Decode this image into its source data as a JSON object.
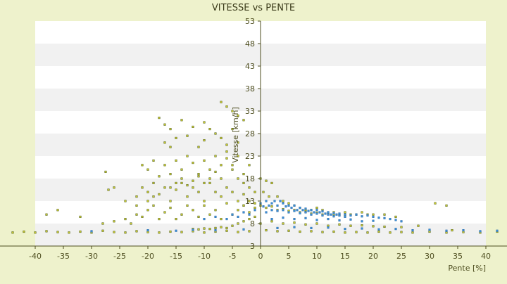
{
  "chart_data": {
    "type": "scatter",
    "title": "VITESSE vs PENTE",
    "xlabel": "Pente [%]",
    "ylabel": "Vitesse [km/h]",
    "xlim": [
      -40,
      40
    ],
    "ylim": [
      3,
      53
    ],
    "x_ticks": [
      "-40",
      "-35",
      "-30",
      "-25",
      "-20",
      "-15",
      "-10",
      "-5",
      "0",
      "5",
      "10",
      "15",
      "20",
      "25",
      "30",
      "35",
      "40"
    ],
    "y_ticks": [
      "3",
      "8",
      "13",
      "18",
      "23",
      "28",
      "33",
      "38",
      "43",
      "48",
      "53"
    ],
    "grid": "horizontal alternating bands",
    "legend": "none",
    "colors": {
      "background": "#eef2cc",
      "plot_band_light": "#ffffff",
      "plot_band_dark": "#f1f1f1",
      "series_a": "#c8c832",
      "series_a_edge": "#4a5a10",
      "series_b": "#3a8fd8",
      "axis": "#4d4d1f"
    },
    "series": [
      {
        "color": "#c8c832",
        "points": [
          [
            -18,
            31.5
          ],
          [
            -17,
            30
          ],
          [
            -16,
            29
          ],
          [
            -14,
            31
          ],
          [
            -12,
            29.5
          ],
          [
            -10,
            30.5
          ],
          [
            -9,
            29
          ],
          [
            -7,
            35
          ],
          [
            -6,
            34
          ],
          [
            -5,
            33
          ],
          [
            -4,
            32
          ],
          [
            -3,
            31
          ],
          [
            -17,
            26
          ],
          [
            -16,
            25
          ],
          [
            -15,
            27
          ],
          [
            -13,
            27.5
          ],
          [
            -11,
            25
          ],
          [
            -10,
            26.5
          ],
          [
            -8,
            28
          ],
          [
            -7,
            27
          ],
          [
            -6,
            25.5
          ],
          [
            -5,
            29
          ],
          [
            -4,
            26
          ],
          [
            -21,
            21
          ],
          [
            -20,
            20
          ],
          [
            -19,
            22
          ],
          [
            -18,
            18.5
          ],
          [
            -17,
            21
          ],
          [
            -16,
            19
          ],
          [
            -15,
            22
          ],
          [
            -14,
            20
          ],
          [
            -13,
            23
          ],
          [
            -12,
            21.5
          ],
          [
            -11,
            19
          ],
          [
            -10,
            22
          ],
          [
            -9,
            20
          ],
          [
            -8,
            23
          ],
          [
            -7,
            21
          ],
          [
            -6,
            22.5
          ],
          [
            -5,
            20
          ],
          [
            -4,
            23
          ],
          [
            -3,
            19
          ],
          [
            -2,
            21
          ],
          [
            -27.5,
            19.5
          ],
          [
            -27,
            15.5
          ],
          [
            -26,
            16
          ],
          [
            -24,
            13
          ],
          [
            -22,
            14
          ],
          [
            -21,
            16
          ],
          [
            -20,
            15
          ],
          [
            -19,
            17
          ],
          [
            -18,
            14.5
          ],
          [
            -17,
            16
          ],
          [
            -16,
            13
          ],
          [
            -15,
            15.5
          ],
          [
            -14,
            17
          ],
          [
            -13,
            14
          ],
          [
            -12,
            16
          ],
          [
            -11,
            15
          ],
          [
            -10,
            13
          ],
          [
            -9,
            17
          ],
          [
            -8,
            15
          ],
          [
            -7,
            14
          ],
          [
            -6,
            16
          ],
          [
            -5,
            15
          ],
          [
            -4,
            13
          ],
          [
            -3,
            14.5
          ],
          [
            -2,
            16
          ],
          [
            -1,
            15
          ],
          [
            -38,
            10
          ],
          [
            -36,
            11
          ],
          [
            -32,
            9.5
          ],
          [
            -28,
            8
          ],
          [
            -26,
            8.5
          ],
          [
            -24,
            9
          ],
          [
            -23,
            8
          ],
          [
            -22,
            10
          ],
          [
            -21,
            9.5
          ],
          [
            -20,
            11
          ],
          [
            -19,
            12
          ],
          [
            -18,
            9
          ],
          [
            -17,
            10.5
          ],
          [
            -16,
            11.5
          ],
          [
            -15,
            9
          ],
          [
            -14,
            10
          ],
          [
            -13,
            12
          ],
          [
            -12,
            11
          ],
          [
            -11,
            9.5
          ],
          [
            -10,
            12
          ],
          [
            -9,
            10
          ],
          [
            -8,
            11
          ],
          [
            -7,
            9
          ],
          [
            -6,
            12.5
          ],
          [
            -5,
            10
          ],
          [
            -4,
            11
          ],
          [
            -3,
            12
          ],
          [
            -2,
            10.5
          ],
          [
            -1,
            11.5
          ],
          [
            0,
            18
          ],
          [
            1,
            17.5
          ],
          [
            2,
            17
          ],
          [
            0.5,
            15
          ],
          [
            1.5,
            14
          ],
          [
            3,
            14
          ],
          [
            4,
            13
          ],
          [
            5,
            12.5
          ],
          [
            6,
            12
          ],
          [
            7,
            11.5
          ],
          [
            8,
            11
          ],
          [
            9,
            11
          ],
          [
            10,
            11.5
          ],
          [
            11,
            11
          ],
          [
            12,
            10.5
          ],
          [
            13,
            10.5
          ],
          [
            14,
            10
          ],
          [
            15,
            10.5
          ],
          [
            16,
            10
          ],
          [
            17,
            10
          ],
          [
            18,
            10.5
          ],
          [
            19,
            10
          ],
          [
            20,
            10
          ],
          [
            22,
            10
          ],
          [
            24,
            9.5
          ],
          [
            0,
            12
          ],
          [
            1,
            11.5
          ],
          [
            2,
            11.8
          ],
          [
            3,
            11
          ],
          [
            4,
            11.2
          ],
          [
            5,
            10.8
          ],
          [
            6,
            11
          ],
          [
            7,
            10.5
          ],
          [
            8,
            10.6
          ],
          [
            9,
            10.2
          ],
          [
            10,
            10.4
          ],
          [
            11,
            10
          ],
          [
            12,
            10.2
          ],
          [
            13,
            10
          ],
          [
            14,
            9.8
          ],
          [
            15,
            9.8
          ],
          [
            0,
            8
          ],
          [
            2,
            8.5
          ],
          [
            4,
            8
          ],
          [
            6,
            8.2
          ],
          [
            8,
            7.8
          ],
          [
            10,
            8
          ],
          [
            12,
            7.5
          ],
          [
            14,
            7.8
          ],
          [
            16,
            7.5
          ],
          [
            18,
            7.6
          ],
          [
            20,
            7.4
          ],
          [
            22,
            7.3
          ],
          [
            25,
            7.2
          ],
          [
            28,
            7.5
          ],
          [
            31,
            12.5
          ],
          [
            33,
            12
          ],
          [
            34,
            6.5
          ],
          [
            -44,
            6
          ],
          [
            -42,
            6.2
          ],
          [
            -40,
            6
          ],
          [
            -38,
            6.3
          ],
          [
            -36,
            6.1
          ],
          [
            -34,
            6
          ],
          [
            -32,
            6.2
          ],
          [
            -30,
            6
          ],
          [
            -28,
            6.4
          ],
          [
            -26,
            6.1
          ],
          [
            -24,
            6
          ],
          [
            -22,
            6.3
          ],
          [
            -20,
            6.1
          ],
          [
            -18,
            6
          ],
          [
            -16,
            6.2
          ],
          [
            -14,
            6.1
          ],
          [
            -12,
            6.3
          ],
          [
            -10,
            6
          ],
          [
            -8,
            6.2
          ],
          [
            -6,
            6.4
          ],
          [
            -4,
            6.1
          ],
          [
            -2,
            6.3
          ],
          [
            1,
            6.5
          ],
          [
            3,
            6.3
          ],
          [
            5,
            6.4
          ],
          [
            7,
            6.2
          ],
          [
            9,
            6.3
          ],
          [
            11,
            6.1
          ],
          [
            13,
            6.2
          ],
          [
            15,
            6
          ],
          [
            17,
            6.1
          ],
          [
            19,
            6
          ],
          [
            21,
            6.2
          ],
          [
            23,
            6
          ],
          [
            25,
            6.1
          ],
          [
            27,
            6
          ],
          [
            30,
            6.2
          ],
          [
            33,
            6
          ],
          [
            36,
            6.1
          ],
          [
            39,
            6
          ],
          [
            42,
            6.2
          ],
          [
            -1,
            12.5
          ],
          [
            -2,
            13
          ],
          [
            -3,
            12
          ],
          [
            -1,
            9.5
          ],
          [
            -2,
            9
          ],
          [
            -3,
            8.5
          ],
          [
            -4,
            8
          ],
          [
            -5,
            7.5
          ],
          [
            -6,
            7
          ],
          [
            -7,
            7.2
          ],
          [
            -8,
            7
          ],
          [
            -9,
            6.8
          ],
          [
            -10,
            6.9
          ],
          [
            -11,
            6.7
          ],
          [
            -12,
            6.8
          ],
          [
            -5,
            21
          ],
          [
            -6,
            24
          ],
          [
            -4,
            18
          ],
          [
            -3,
            17
          ],
          [
            -7,
            18
          ],
          [
            -8,
            19.5
          ],
          [
            -9,
            18
          ],
          [
            -10,
            17
          ],
          [
            -11,
            18.5
          ],
          [
            -12,
            17.5
          ],
          [
            -13,
            16.5
          ],
          [
            -14,
            18
          ],
          [
            -15,
            17
          ],
          [
            -16,
            16
          ],
          [
            -19,
            14
          ],
          [
            -20,
            13
          ],
          [
            -22,
            12
          ]
        ]
      },
      {
        "color": "#3a8fd8",
        "points": [
          [
            -10,
            9
          ],
          [
            -8,
            9.5
          ],
          [
            -6,
            9
          ],
          [
            -5,
            10
          ],
          [
            -4,
            9.5
          ],
          [
            -3,
            10.5
          ],
          [
            -2,
            10
          ],
          [
            -1,
            11
          ],
          [
            0,
            12.5
          ],
          [
            0.5,
            11.8
          ],
          [
            1,
            13
          ],
          [
            1.5,
            12
          ],
          [
            2,
            12.5
          ],
          [
            2.5,
            13
          ],
          [
            3,
            12
          ],
          [
            3.5,
            13
          ],
          [
            4,
            12.5
          ],
          [
            4.5,
            11.8
          ],
          [
            5,
            12
          ],
          [
            5.5,
            11.5
          ],
          [
            6,
            12
          ],
          [
            6.5,
            11
          ],
          [
            7,
            11.5
          ],
          [
            7.5,
            11
          ],
          [
            8,
            11.3
          ],
          [
            8.5,
            10.8
          ],
          [
            9,
            11
          ],
          [
            9.5,
            10.5
          ],
          [
            10,
            11
          ],
          [
            10.5,
            10.5
          ],
          [
            11,
            10.7
          ],
          [
            11.5,
            10.2
          ],
          [
            12,
            10.5
          ],
          [
            12.5,
            10
          ],
          [
            13,
            10.3
          ],
          [
            13.5,
            10
          ],
          [
            14,
            10.2
          ],
          [
            15,
            10
          ],
          [
            16,
            9.8
          ],
          [
            17,
            10
          ],
          [
            18,
            9.6
          ],
          [
            19,
            9.8
          ],
          [
            20,
            9.5
          ],
          [
            21,
            9.3
          ],
          [
            22,
            9.2
          ],
          [
            23,
            9
          ],
          [
            24,
            8.8
          ],
          [
            25,
            8.5
          ],
          [
            1,
            10.5
          ],
          [
            2,
            11
          ],
          [
            3,
            10.8
          ],
          [
            4,
            11
          ],
          [
            5,
            10.5
          ],
          [
            6,
            10.8
          ],
          [
            7,
            10.3
          ],
          [
            8,
            10.5
          ],
          [
            9,
            10
          ],
          [
            10,
            10.2
          ],
          [
            11,
            9.8
          ],
          [
            12,
            10
          ],
          [
            13,
            9.6
          ],
          [
            14,
            9.8
          ],
          [
            15,
            9.5
          ],
          [
            2,
            9
          ],
          [
            4,
            9.3
          ],
          [
            6,
            9
          ],
          [
            8,
            9.2
          ],
          [
            10,
            8.8
          ],
          [
            12,
            9
          ],
          [
            14,
            8.7
          ],
          [
            16,
            8.9
          ],
          [
            18,
            8.5
          ],
          [
            20,
            8.6
          ],
          [
            3,
            7
          ],
          [
            6,
            7.2
          ],
          [
            9,
            7
          ],
          [
            12,
            7.1
          ],
          [
            15,
            6.8
          ],
          [
            18,
            6.9
          ],
          [
            21,
            6.7
          ],
          [
            24,
            6.8
          ],
          [
            27,
            6.5
          ],
          [
            30,
            6.6
          ],
          [
            33,
            6.4
          ],
          [
            36,
            6.5
          ],
          [
            39,
            6.3
          ],
          [
            42,
            6.4
          ],
          [
            -30,
            6.3
          ],
          [
            -20,
            6.5
          ],
          [
            -15,
            6.4
          ],
          [
            -12,
            6.6
          ],
          [
            -8,
            6.5
          ],
          [
            -3,
            6.7
          ]
        ]
      }
    ]
  }
}
